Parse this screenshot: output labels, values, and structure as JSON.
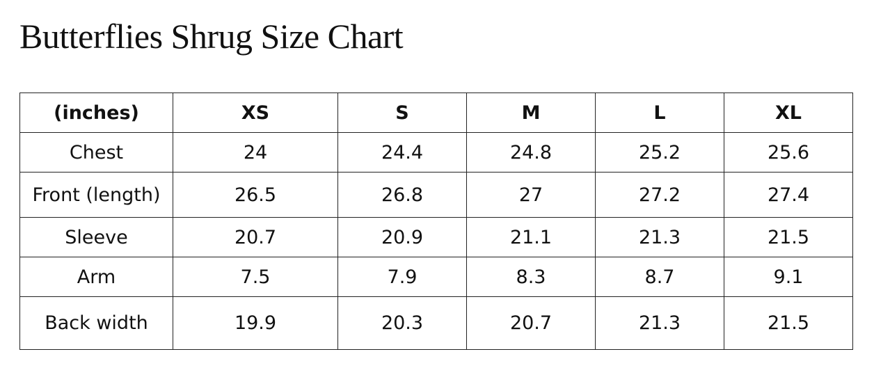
{
  "title": "Butterflies Shrug Size Chart",
  "table": {
    "headers": [
      "(inches)",
      "XS",
      "S",
      "M",
      "L",
      "XL"
    ],
    "rows": [
      {
        "label": "Chest",
        "values": [
          "24",
          "24.4",
          "24.8",
          "25.2",
          "25.6"
        ]
      },
      {
        "label": "Front (length)",
        "values": [
          "26.5",
          "26.8",
          "27",
          "27.2",
          "27.4"
        ]
      },
      {
        "label": "Sleeve",
        "values": [
          "20.7",
          "20.9",
          "21.1",
          "21.3",
          "21.5"
        ]
      },
      {
        "label": "Arm",
        "values": [
          "7.5",
          "7.9",
          "8.3",
          "8.7",
          "9.1"
        ]
      },
      {
        "label": "Back width",
        "values": [
          "19.9",
          "20.3",
          "20.7",
          "21.3",
          "21.5"
        ]
      }
    ]
  }
}
